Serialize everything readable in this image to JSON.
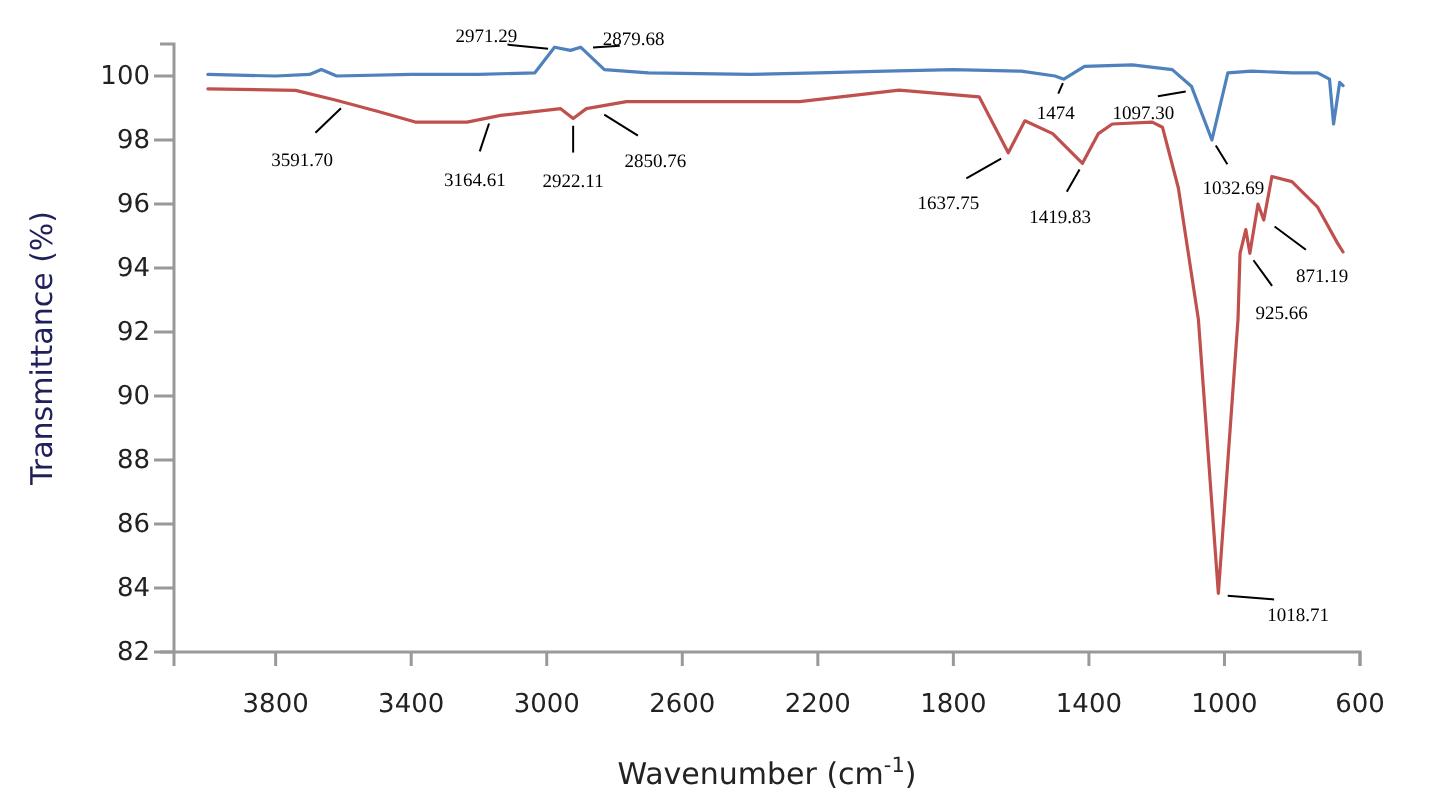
{
  "chart_data": {
    "type": "line",
    "xlabel": "Wavenumber (cm$^{-1}$)",
    "ylabel": "Transmittance (%)",
    "xlim": [
      4100,
      600
    ],
    "xticks": [
      3800,
      3400,
      3000,
      2600,
      2200,
      1800,
      1400,
      1000,
      600
    ],
    "ylim": [
      82,
      101
    ],
    "yticks": [
      82,
      84,
      86,
      88,
      90,
      92,
      94,
      96,
      98,
      100
    ],
    "grid": false,
    "marker": "none",
    "line_style": "solid",
    "series": [
      {
        "color": "#4f81bd",
        "x": [
          4000,
          3800,
          3700,
          3665,
          3620,
          3400,
          3200,
          3035,
          2977,
          2930,
          2900,
          2830,
          2700,
          2400,
          2200,
          2000,
          1800,
          1600,
          1500,
          1474,
          1413,
          1272,
          1154,
          1097,
          1037,
          990,
          920,
          800,
          725,
          690,
          678,
          660,
          650
        ],
        "values": [
          100.05,
          100.0,
          100.05,
          100.2,
          100.0,
          100.05,
          100.05,
          100.1,
          100.9,
          100.8,
          100.9,
          100.2,
          100.1,
          100.05,
          100.1,
          100.15,
          100.2,
          100.15,
          100.0,
          99.9,
          100.3,
          100.35,
          100.2,
          99.67,
          98.0,
          100.1,
          100.15,
          100.1,
          100.1,
          99.9,
          98.5,
          99.8,
          99.7
        ]
      },
      {
        "color": "#c0504d",
        "x": [
          4000,
          3741,
          3624,
          3500,
          3388,
          3235,
          3136,
          2959,
          2922,
          2883,
          2765,
          2500,
          2254,
          1960,
          1724,
          1638,
          1589,
          1507,
          1419,
          1372,
          1331,
          1213,
          1183,
          1136,
          1077,
          1018,
          960,
          954,
          937,
          925,
          901,
          884,
          860,
          801,
          725,
          666,
          650
        ],
        "values": [
          99.6,
          99.55,
          99.25,
          98.9,
          98.56,
          98.56,
          98.77,
          98.98,
          98.67,
          98.98,
          99.2,
          99.2,
          99.2,
          99.56,
          99.35,
          97.6,
          98.6,
          98.2,
          97.27,
          98.2,
          98.5,
          98.56,
          98.4,
          96.5,
          92.4,
          83.83,
          92.4,
          94.46,
          95.2,
          94.46,
          96.0,
          95.5,
          96.86,
          96.7,
          95.9,
          94.77,
          94.5
        ]
      }
    ],
    "annotations": [
      {
        "text": "2971.29",
        "x": 2971.29,
        "y": 100.8
      },
      {
        "text": "2879.68",
        "x": 2879.68,
        "y": 100.85
      },
      {
        "text": "3591.70",
        "x": 3591.7,
        "y": 99.2
      },
      {
        "text": "3164.61",
        "x": 3164.61,
        "y": 98.75
      },
      {
        "text": "2922.11",
        "x": 2922.11,
        "y": 98.67
      },
      {
        "text": "2850.76",
        "x": 2850.76,
        "y": 98.98
      },
      {
        "text": "1474",
        "x": 1474,
        "y": 99.9
      },
      {
        "text": "1097.30",
        "x": 1097.3,
        "y": 99.6
      },
      {
        "text": "1032.69",
        "x": 1032.69,
        "y": 98.0
      },
      {
        "text": "1637.75",
        "x": 1637.75,
        "y": 97.6
      },
      {
        "text": "1419.83",
        "x": 1419.83,
        "y": 97.27
      },
      {
        "text": "925.66",
        "x": 925.66,
        "y": 94.46
      },
      {
        "text": "871.19",
        "x": 871.19,
        "y": 95.5
      },
      {
        "text": "1018.71",
        "x": 1018.71,
        "y": 83.83
      }
    ]
  }
}
